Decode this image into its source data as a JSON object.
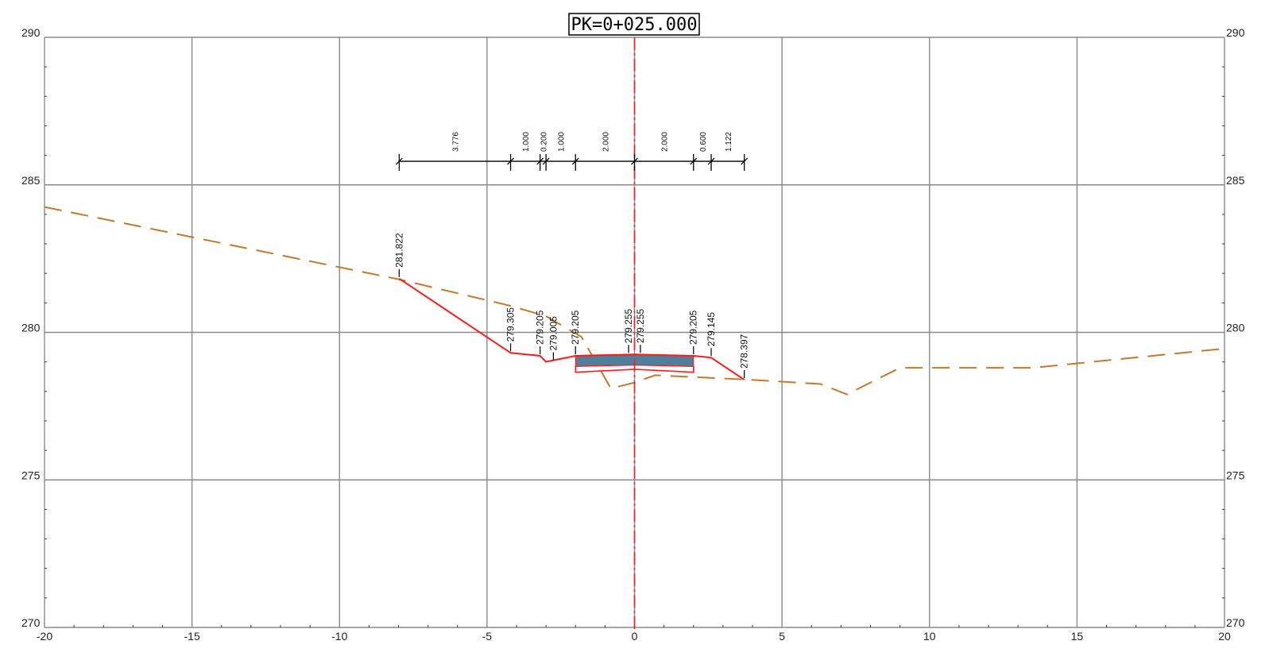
{
  "title": "PK=0+025.000",
  "axes": {
    "x_range": [
      -20,
      20
    ],
    "y_range": [
      270,
      290
    ],
    "x_ticks": [
      -20,
      -15,
      -10,
      -5,
      0,
      5,
      10,
      15,
      20
    ],
    "x_tick_labels": [
      "-20",
      "-15",
      "-10",
      "-5",
      "0",
      "5",
      "10",
      "15",
      "20"
    ],
    "y_ticks": [
      270,
      275,
      280,
      285,
      290
    ],
    "y_tick_labels": [
      "270",
      "275",
      "280",
      "285",
      "290"
    ],
    "grid": true
  },
  "colors": {
    "grid": "#8a8a8a",
    "design_line": "#ff1a1a",
    "terrain_line": "#c8782a",
    "pavement": "#4f7f9a",
    "centerline": "#e8252a"
  },
  "terrain_profile": [
    [
      -20,
      284.25
    ],
    [
      -8,
      281.8
    ],
    [
      -4.2,
      280.9
    ],
    [
      -3,
      280.55
    ],
    [
      -1.8,
      279.85
    ],
    [
      -0.8,
      278.1
    ],
    [
      0,
      278.3
    ],
    [
      0.7,
      278.55
    ],
    [
      3.8,
      278.4
    ],
    [
      6.3,
      278.25
    ],
    [
      7.2,
      277.9
    ],
    [
      9.0,
      278.8
    ],
    [
      13.5,
      278.8
    ],
    [
      20,
      279.45
    ]
  ],
  "design_profile": [
    [
      -7.977,
      281.822
    ],
    [
      -4.2,
      279.305
    ],
    [
      -3.2,
      279.205
    ],
    [
      -3.0,
      279.005
    ],
    [
      -2.0,
      279.205
    ],
    [
      0,
      279.255
    ],
    [
      2.0,
      279.205
    ],
    [
      2.6,
      279.145
    ],
    [
      3.722,
      278.397
    ]
  ],
  "pavement": [
    [
      -2.0,
      279.205
    ],
    [
      0,
      279.255
    ],
    [
      2.0,
      279.205
    ],
    [
      2.0,
      278.85
    ],
    [
      0,
      278.9
    ],
    [
      -2.0,
      278.85
    ]
  ],
  "subgrade": [
    [
      -2.0,
      278.85
    ],
    [
      0,
      278.9
    ],
    [
      2.0,
      278.85
    ],
    [
      2.0,
      278.65
    ],
    [
      0,
      278.75
    ],
    [
      -2.0,
      278.65
    ]
  ],
  "elevation_labels": [
    {
      "text": "281.822",
      "x": -7.977,
      "y": 281.822
    },
    {
      "text": "279.305",
      "x": -4.2,
      "y": 279.305
    },
    {
      "text": "279.205",
      "x": -3.2,
      "y": 279.205
    },
    {
      "text": "279.005",
      "x": -2.75,
      "y": 279.005
    },
    {
      "text": "279.205",
      "x": -2.0,
      "y": 279.205
    },
    {
      "text": "279.255",
      "x": -0.2,
      "y": 279.255
    },
    {
      "text": "279.255",
      "x": 0.2,
      "y": 279.255
    },
    {
      "text": "279.205",
      "x": 2.0,
      "y": 279.205
    },
    {
      "text": "279.145",
      "x": 2.6,
      "y": 279.145
    },
    {
      "text": "278.397",
      "x": 3.722,
      "y": 278.397
    }
  ],
  "dimension_line": {
    "y": 285.8,
    "stations": [
      -7.976,
      -4.2,
      -3.2,
      -3.0,
      -2.0,
      0,
      2.0,
      2.6,
      3.722
    ],
    "segment_labels": [
      "3.776",
      "1.000",
      "0.200",
      "1.000",
      "2.000",
      "2.000",
      "0.600",
      "1.122"
    ]
  }
}
